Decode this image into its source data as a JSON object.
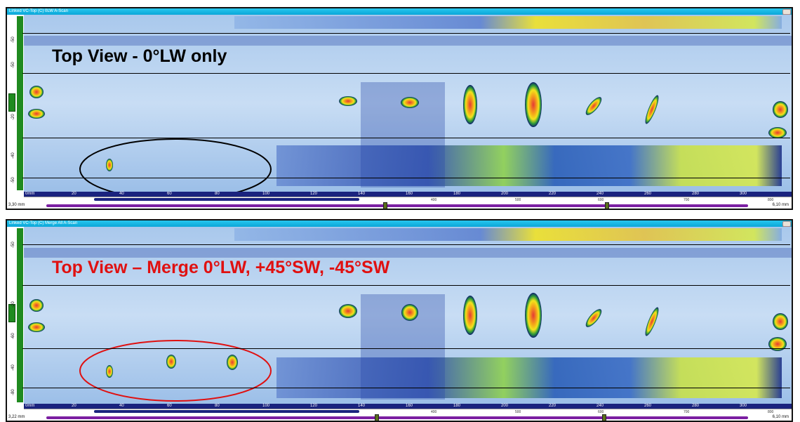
{
  "panels": [
    {
      "window_title": "Linked VC-Top (C) 0LW A-Scan",
      "overlay_title": "Top View - 0°LW only",
      "overlay_color": "#000000",
      "ellipse_color": "#000000",
      "v_ticks": [
        "-50",
        "-50",
        "-20",
        "-40",
        "-50"
      ],
      "h_ticks": [
        "20",
        "40",
        "60",
        "80",
        "100",
        "120",
        "140",
        "160",
        "180",
        "200",
        "220",
        "240",
        "260",
        "280",
        "300"
      ],
      "h_start": "0mm",
      "sub_ticks": [
        "400",
        "500",
        "600",
        "700",
        "800"
      ],
      "left_value": "3,30 mm",
      "right_value": "6,10 mm"
    },
    {
      "window_title": "Linked VC-Top (C) Merge All A-Scan",
      "overlay_title": "Top View – Merge 0°LW, +45°SW, -45°SW",
      "overlay_color": "#e01010",
      "ellipse_color": "#e01010",
      "v_ticks": [
        "-50",
        "-20",
        "-60",
        "-40",
        "-80"
      ],
      "h_ticks": [
        "20",
        "40",
        "60",
        "80",
        "100",
        "120",
        "140",
        "160",
        "180",
        "200",
        "220",
        "240",
        "260",
        "280",
        "300"
      ],
      "h_start": "0mm",
      "sub_ticks": [
        "400",
        "500",
        "600",
        "700",
        "800"
      ],
      "left_value": "3,22 mm",
      "right_value": "6,10 mm"
    }
  ],
  "colors": {
    "background_scan": "#b9d3ee",
    "indication_red": "#e53935",
    "indication_yellow": "#f4e31b",
    "indication_green": "#2e9c3a",
    "indication_navy": "#0d1f6e",
    "titlebar": "#18b7e6",
    "ruler_navy": "#1a237e",
    "range_purple": "#7b1fa2"
  },
  "icons": [
    "window-close-icon"
  ]
}
